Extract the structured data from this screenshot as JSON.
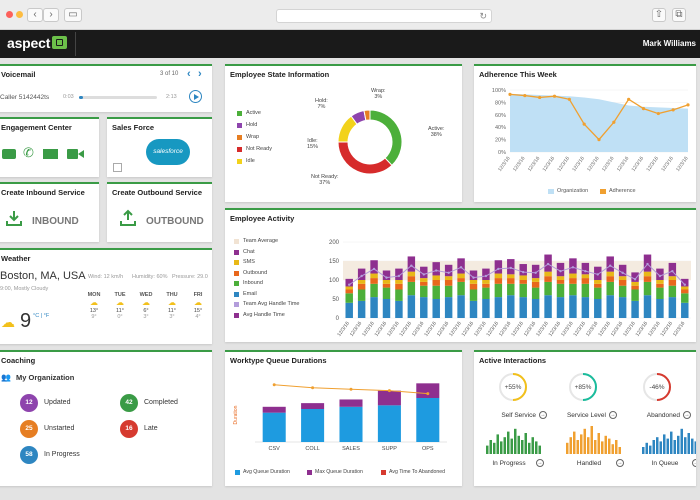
{
  "header": {
    "app_name": "aspect",
    "user_name": "Mark Williams"
  },
  "voicemail": {
    "title": "Voicemail",
    "pager": "3 of 10",
    "caller": "Caller 5142442ts",
    "time_start": "0:03",
    "time_end": "2:13",
    "progress_fraction": 0.05
  },
  "engagement": {
    "title": "Engagement Center"
  },
  "salesforce": {
    "title": "Sales Force",
    "logo_text": "salesforce"
  },
  "inbound": {
    "title": "Create Inbound Service",
    "button_label": "INBOUND"
  },
  "outbound": {
    "title": "Create Outbound Service",
    "button_label": "OUTBOUND"
  },
  "weather": {
    "title": "Weather",
    "location": "Boston, MA, USA",
    "condition": "9:00, Mostly Cloudy",
    "wind": "Wind: 12 km/h",
    "humidity": "Humidity: 60%",
    "pressure": "Pressure: 29.0",
    "temperature": "9",
    "units": "°C | °F",
    "forecast": [
      {
        "day": "MON",
        "hi": "13°",
        "lo": "9°"
      },
      {
        "day": "TUE",
        "hi": "11°",
        "lo": "0°"
      },
      {
        "day": "WED",
        "hi": "6°",
        "lo": "3°"
      },
      {
        "day": "THU",
        "hi": "11°",
        "lo": "3°"
      },
      {
        "day": "FRI",
        "hi": "15°",
        "lo": "4°"
      }
    ]
  },
  "coaching": {
    "title": "Coaching",
    "org_label": "My Organization",
    "stats": [
      {
        "count": "12",
        "label": "Updated",
        "color": "#8e44ad"
      },
      {
        "count": "42",
        "label": "Completed",
        "color": "#3a9b46"
      },
      {
        "count": "25",
        "label": "Unstarted",
        "color": "#e67e22"
      },
      {
        "count": "16",
        "label": "Late",
        "color": "#d63a2f"
      },
      {
        "count": "58",
        "label": "In Progress",
        "color": "#2e86c1"
      }
    ]
  },
  "employee_state": {
    "title": "Employee State Information",
    "legend": [
      {
        "label": "Active",
        "color": "#4caf3a"
      },
      {
        "label": "Hold",
        "color": "#8e44ad"
      },
      {
        "label": "Wrap",
        "color": "#e67e22"
      },
      {
        "label": "Not Ready",
        "color": "#d62b2b"
      },
      {
        "label": "Idle",
        "color": "#f2d21b"
      }
    ],
    "callouts": [
      {
        "label": "Wrap:",
        "value": "3%"
      },
      {
        "label": "Hold:",
        "value": "7%"
      },
      {
        "label": "Idle:",
        "value": "15%"
      },
      {
        "label": "Not Ready:",
        "value": "37%"
      },
      {
        "label": "Active:",
        "value": "38%"
      }
    ]
  },
  "adherence": {
    "title": "Adherence This Week",
    "legend": [
      {
        "label": "Organization",
        "color": "#bfe0f5"
      },
      {
        "label": "Adherence",
        "color": "#f0a030"
      }
    ]
  },
  "activity": {
    "title": "Employee Activity",
    "legend": [
      {
        "label": "Team Average",
        "color": "#f1e3d3"
      },
      {
        "label": "Chat",
        "color": "#8e2f8f"
      },
      {
        "label": "SMS",
        "color": "#e8b817"
      },
      {
        "label": "Outbound",
        "color": "#e8671c"
      },
      {
        "label": "Inbound",
        "color": "#4caf3a"
      },
      {
        "label": "Email",
        "color": "#2e86c1"
      },
      {
        "label": "Team Avg Handle Time",
        "color": "#b39ddb"
      },
      {
        "label": "Avg Handle Time",
        "color": "#8e2f8f"
      }
    ]
  },
  "worktype": {
    "title": "Worktype Queue Durations",
    "legend": [
      {
        "label": "Avg Queue Duration",
        "color": "#1e9be0"
      },
      {
        "label": "Max Queue Duration",
        "color": "#8e2f8f"
      },
      {
        "label": "Avg Time To Abandoned",
        "color": "#d63a2f"
      }
    ]
  },
  "interactions": {
    "title": "Active Interactions",
    "gauges": [
      {
        "value": "+55%",
        "label": "Self Service",
        "color": "#f2c01b"
      },
      {
        "value": "+85%",
        "label": "Service Level",
        "color": "#1abc9c"
      },
      {
        "value": "-46%",
        "label": "Abandoned",
        "color": "#d63a2f"
      }
    ],
    "bar_groups": [
      {
        "label": "In Progress",
        "color": "#3a9b46"
      },
      {
        "label": "Handled",
        "color": "#f0a030"
      },
      {
        "label": "In Queue",
        "color": "#2e86c1"
      }
    ]
  },
  "chart_data": [
    {
      "type": "pie",
      "title": "Employee State Information",
      "categories": [
        "Active",
        "Not Ready",
        "Idle",
        "Hold",
        "Wrap"
      ],
      "values": [
        38,
        37,
        15,
        7,
        3
      ],
      "colors": [
        "#4caf3a",
        "#d62b2b",
        "#f2d21b",
        "#8e44ad",
        "#e67e22"
      ]
    },
    {
      "type": "area",
      "title": "Adherence This Week",
      "categories": [
        "12/3/16",
        "12/3/16",
        "12/3/16",
        "12/3/16",
        "12/3/16",
        "12/3/16",
        "12/3/16",
        "12/3/16",
        "12/3/16",
        "12/3/16",
        "12/3/16",
        "12/3/16",
        "12/3/16"
      ],
      "ylim": [
        0,
        100
      ],
      "yticks": [
        "0%",
        "20%",
        "40%",
        "60%",
        "80%",
        "100%"
      ],
      "series": [
        {
          "name": "Organization",
          "values": [
            94,
            93,
            92,
            91,
            90,
            88,
            85,
            80,
            75,
            73,
            72,
            71,
            70
          ]
        },
        {
          "name": "Adherence",
          "values": [
            93,
            91,
            88,
            90,
            85,
            45,
            20,
            48,
            85,
            70,
            62,
            68,
            76
          ]
        }
      ]
    },
    {
      "type": "bar",
      "title": "Employee Activity",
      "categories": [
        "12/3/16",
        "12/3/16",
        "12/3/16",
        "12/3/16",
        "12/3/16",
        "12/3/16",
        "12/3/16",
        "12/3/16",
        "12/3/16",
        "12/3/16",
        "12/3/16",
        "12/3/16",
        "12/3/16",
        "12/3/16",
        "12/3/16",
        "12/3/16",
        "12/3/16",
        "12/3/16",
        "12/3/16",
        "12/3/16",
        "12/3/16",
        "12/3/16",
        "12/3/16",
        "12/3/16",
        "12/3/16",
        "12/3/16",
        "12/3/16",
        "12/3/16"
      ],
      "ylim": [
        0,
        200
      ],
      "yticks": [
        "0",
        "50",
        "100",
        "150",
        "200"
      ],
      "series": [
        {
          "name": "Email",
          "values": [
            40,
            45,
            55,
            50,
            45,
            60,
            55,
            50,
            55,
            60,
            45,
            50,
            55,
            60,
            55,
            50,
            60,
            55,
            60,
            55,
            50,
            60,
            55,
            45,
            60,
            50,
            55,
            40
          ]
        },
        {
          "name": "Inbound",
          "values": [
            25,
            30,
            35,
            30,
            30,
            35,
            30,
            35,
            30,
            35,
            30,
            30,
            35,
            30,
            35,
            30,
            35,
            35,
            30,
            35,
            30,
            35,
            30,
            30,
            35,
            30,
            30,
            25
          ]
        },
        {
          "name": "Outbound",
          "values": [
            10,
            15,
            15,
            10,
            15,
            15,
            10,
            15,
            15,
            10,
            15,
            10,
            15,
            15,
            10,
            15,
            15,
            10,
            15,
            15,
            10,
            15,
            15,
            10,
            15,
            10,
            15,
            10
          ]
        },
        {
          "name": "SMS",
          "values": [
            8,
            10,
            12,
            10,
            10,
            12,
            10,
            12,
            10,
            12,
            10,
            10,
            12,
            10,
            12,
            10,
            12,
            10,
            12,
            10,
            10,
            12,
            10,
            10,
            12,
            10,
            10,
            8
          ]
        },
        {
          "name": "Chat",
          "values": [
            20,
            30,
            35,
            25,
            30,
            40,
            30,
            35,
            30,
            40,
            25,
            30,
            35,
            40,
            30,
            35,
            45,
            35,
            40,
            30,
            35,
            40,
            30,
            25,
            45,
            30,
            35,
            20
          ]
        }
      ]
    },
    {
      "type": "bar",
      "title": "Worktype Queue Durations",
      "categories": [
        "CSV",
        "COLL",
        "SALES",
        "SUPP",
        "OPS"
      ],
      "ylabel": "Duration",
      "series": [
        {
          "name": "Avg Queue Duration",
          "values": [
            40,
            45,
            48,
            50,
            60
          ]
        },
        {
          "name": "Max Queue Duration",
          "values": [
            8,
            8,
            10,
            20,
            20
          ]
        },
        {
          "name": "Avg Time To Abandoned",
          "values": [
            78,
            74,
            72,
            70,
            66
          ]
        }
      ]
    }
  ]
}
